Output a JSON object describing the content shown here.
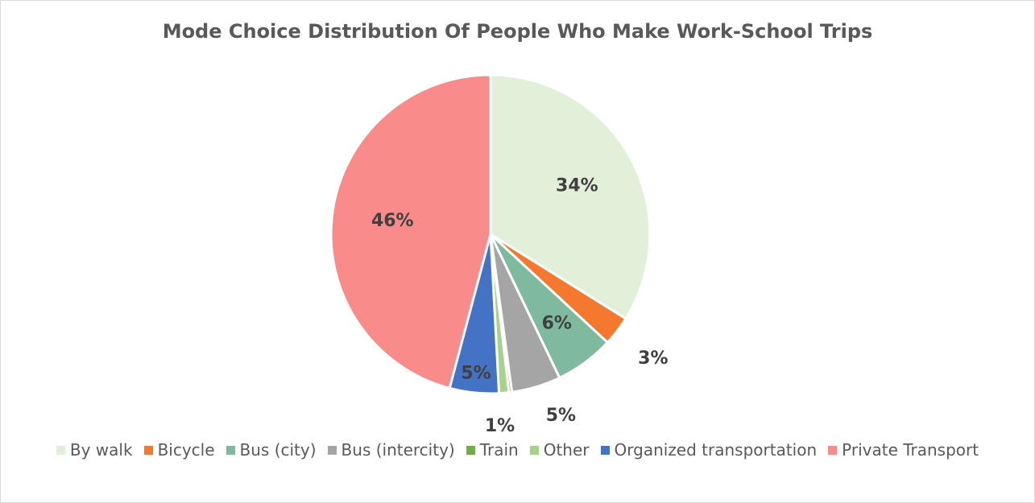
{
  "chart_data": {
    "type": "pie",
    "title": "Mode Choice Distribution Of People Who Make Work-School Trips",
    "categories": [
      "By walk",
      "Bicycle",
      "Bus (city)",
      "Bus (intercity)",
      "Train",
      "Other",
      "Organized transportation",
      "Private Transport"
    ],
    "values": [
      34,
      3,
      6,
      5,
      0.3,
      1,
      5,
      46
    ],
    "labels": [
      "34%",
      "3%",
      "6%",
      "5%",
      "",
      "1%",
      "5%",
      "46%"
    ],
    "colors": [
      "#e2f0d9",
      "#f4792e",
      "#7fbaa0",
      "#a5a5a5",
      "#70ad47",
      "#a9d18e",
      "#4472c4",
      "#f98b8b"
    ],
    "legend_position": "bottom"
  }
}
